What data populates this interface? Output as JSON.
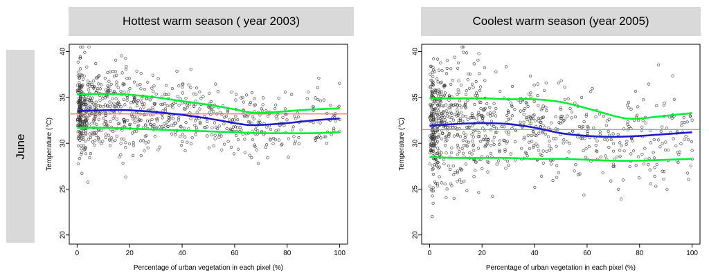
{
  "row_label": "June",
  "chart_data": [
    {
      "type": "scatter",
      "title": "Hottest  warm season ( year 2003)",
      "xlabel": "Percentage of urban vegetation in each pixel (%)",
      "ylabel": "Temperature (°C)",
      "xlim": [
        -3,
        103
      ],
      "ylim": [
        19,
        40.8
      ],
      "xticks": [
        0,
        20,
        40,
        60,
        80,
        100
      ],
      "yticks": [
        20,
        25,
        30,
        35,
        40
      ],
      "reference_line": {
        "y": 33.2,
        "color": "#ff6b6b"
      },
      "series": [
        {
          "name": "upper",
          "color": "#00ee33",
          "x": [
            0,
            10,
            20,
            30,
            40,
            50,
            60,
            65,
            70,
            80,
            90,
            100
          ],
          "y": [
            35.3,
            35.4,
            35.3,
            35.0,
            34.6,
            34.2,
            33.7,
            33.4,
            33.3,
            33.5,
            33.7,
            33.8
          ]
        },
        {
          "name": "median",
          "color": "#1a1acc",
          "x": [
            0,
            10,
            20,
            30,
            40,
            50,
            60,
            65,
            70,
            80,
            90,
            100
          ],
          "y": [
            33.5,
            33.6,
            33.6,
            33.4,
            33.1,
            32.7,
            32.2,
            32.0,
            32.0,
            32.2,
            32.5,
            32.7
          ]
        },
        {
          "name": "lower",
          "color": "#00ee33",
          "x": [
            0,
            10,
            20,
            30,
            40,
            50,
            60,
            70,
            80,
            90,
            100
          ],
          "y": [
            31.7,
            31.7,
            31.6,
            31.5,
            31.4,
            31.3,
            31.2,
            31.1,
            31.1,
            31.1,
            31.2
          ]
        }
      ],
      "scatter": {
        "seed": 2003,
        "n": 900,
        "center": 33.4,
        "spread": 2.2
      }
    },
    {
      "type": "scatter",
      "title": "Coolest warm season (year 2005)",
      "xlabel": "Percentage of urban vegetation in each pixel (%)",
      "ylabel": "Temperature (°C)",
      "xlim": [
        -3,
        103
      ],
      "ylim": [
        19,
        40.8
      ],
      "xticks": [
        0,
        20,
        40,
        60,
        80,
        100
      ],
      "yticks": [
        20,
        25,
        30,
        35,
        40
      ],
      "reference_line": {
        "y": 31.5,
        "color": "#ff6b6b"
      },
      "series": [
        {
          "name": "upper",
          "color": "#00ee33",
          "x": [
            0,
            10,
            20,
            30,
            40,
            50,
            60,
            70,
            75,
            80,
            90,
            100
          ],
          "y": [
            34.9,
            34.9,
            34.9,
            34.8,
            34.8,
            34.5,
            33.8,
            33.0,
            32.7,
            32.7,
            33.0,
            33.3
          ]
        },
        {
          "name": "median",
          "color": "#1a1acc",
          "x": [
            0,
            10,
            20,
            30,
            40,
            50,
            60,
            70,
            80,
            90,
            100
          ],
          "y": [
            31.9,
            32.1,
            32.2,
            32.1,
            31.7,
            31.1,
            30.8,
            30.7,
            30.8,
            31.0,
            31.2
          ]
        },
        {
          "name": "lower",
          "color": "#00ee33",
          "x": [
            0,
            10,
            20,
            30,
            40,
            50,
            60,
            70,
            80,
            90,
            100
          ],
          "y": [
            28.5,
            28.4,
            28.4,
            28.4,
            28.3,
            28.3,
            28.2,
            28.1,
            28.1,
            28.2,
            28.3
          ]
        }
      ],
      "scatter": {
        "seed": 2005,
        "n": 900,
        "center": 31.6,
        "spread": 3.2
      }
    }
  ]
}
